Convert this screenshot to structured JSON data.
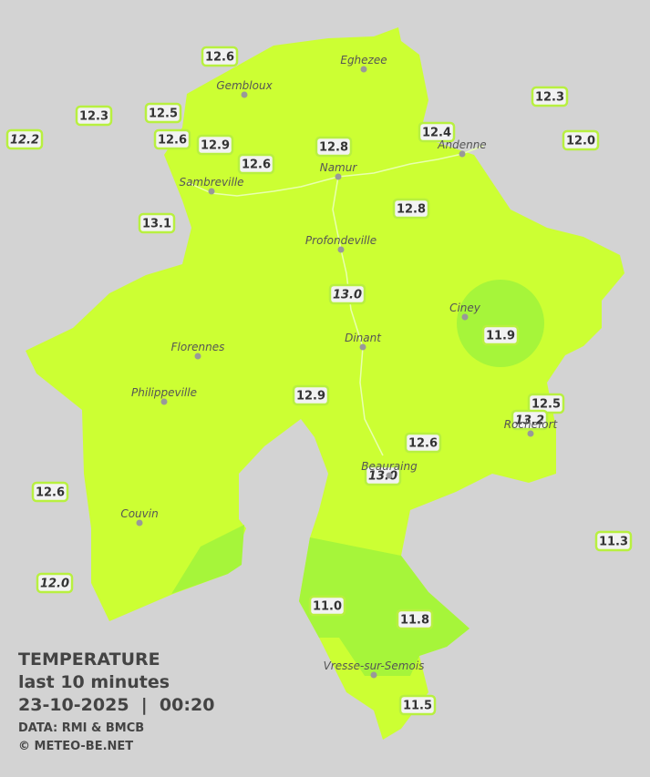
{
  "stations": [
    {
      "label": "12.6",
      "italic": false
    },
    {
      "label": "12.3",
      "italic": false
    },
    {
      "label": "12.5",
      "italic": false
    },
    {
      "label": "12.2",
      "italic": true
    },
    {
      "label": "12.6",
      "italic": false
    },
    {
      "label": "12.9",
      "italic": false
    },
    {
      "label": "12.6",
      "italic": false
    },
    {
      "label": "12.8",
      "italic": false
    },
    {
      "label": "12.4",
      "italic": false
    },
    {
      "label": "12.3",
      "italic": false
    },
    {
      "label": "12.0",
      "italic": false
    },
    {
      "label": "13.1",
      "italic": false
    },
    {
      "label": "12.8",
      "italic": false
    },
    {
      "label": "13.0",
      "italic": true
    },
    {
      "label": "11.9",
      "italic": false
    },
    {
      "label": "12.9",
      "italic": false
    },
    {
      "label": "12.5",
      "italic": false
    },
    {
      "label": "13.2",
      "italic": true
    },
    {
      "label": "12.6",
      "italic": false
    },
    {
      "label": "13.0",
      "italic": true
    },
    {
      "label": "12.6",
      "italic": false
    },
    {
      "label": "11.3",
      "italic": false
    },
    {
      "label": "12.0",
      "italic": true
    },
    {
      "label": "11.0",
      "italic": false
    },
    {
      "label": "11.8",
      "italic": false
    },
    {
      "label": "11.5",
      "italic": false
    }
  ],
  "cities": [
    "Eghezee",
    "Gembloux",
    "Andenne",
    "Namur",
    "Sambreville",
    "Profondeville",
    "Ciney",
    "Dinant",
    "Florennes",
    "Philippeville",
    "Rochefort",
    "Beauraing",
    "Couvin",
    "Vresse-sur-Semois"
  ],
  "legend": {
    "title": "TEMPERATURE",
    "subtitle": "last 10 minutes",
    "datetime": "23-10-2025  |  00:20",
    "source": "DATA: RMI & BMCB",
    "copyright": "© METEO-BE.NET"
  }
}
